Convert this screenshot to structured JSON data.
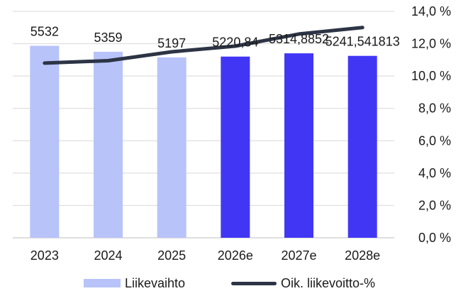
{
  "chart_data": {
    "type": "bar",
    "categories": [
      "2023",
      "2024",
      "2025",
      "2026e",
      "2027e",
      "2028e"
    ],
    "series": [
      {
        "name": "Liikevaihto",
        "type": "bar",
        "axis": "left",
        "values": [
          5532,
          5359,
          5197,
          5220.84,
          5314.8852,
          5241.541813
        ],
        "data_labels": [
          "5532",
          "5359",
          "5197",
          "5220,84",
          "5314,8852",
          "5241,541813"
        ],
        "colors": [
          "#b8c3fa",
          "#b8c3fa",
          "#b8c3fa",
          "#4236f5",
          "#4236f5",
          "#4236f5"
        ]
      },
      {
        "name": "Oik. liikevoitto-%",
        "type": "line",
        "axis": "right",
        "values": [
          10.8,
          10.95,
          11.5,
          11.85,
          12.6,
          13.0
        ],
        "color": "#2c3445"
      }
    ],
    "y_left_range": [
      0,
      6524
    ],
    "y_right_range": [
      0,
      14
    ],
    "y_right_ticks": [
      "0,0 %",
      "2,0 %",
      "4,0 %",
      "6,0 %",
      "8,0 %",
      "10,0 %",
      "12,0 %",
      "14,0 %"
    ],
    "grid": true,
    "legend_position": "bottom"
  }
}
